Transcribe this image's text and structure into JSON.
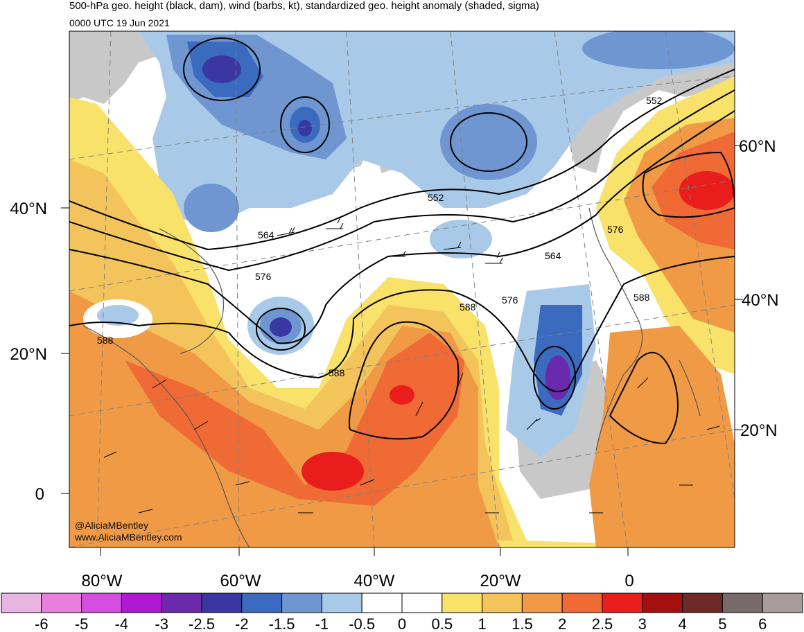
{
  "header": {
    "title": "500-hPa geo. height (black, dam), wind (barbs, kt), standardized geo. height anomaly (shaded, sigma)",
    "valid_time": "0000 UTC 19 Jun 2021"
  },
  "credits": {
    "twitter": "@AliciaMBentley",
    "website": "www.AliciaMBentley.com"
  },
  "lat_labels_left": [
    "40°N",
    "20°N",
    "0"
  ],
  "lat_labels_right": [
    "60°N",
    "40°N",
    "20°N"
  ],
  "lon_labels": [
    "80°W",
    "60°W",
    "40°W",
    "20°W",
    "0"
  ],
  "contour_labels": [
    "552",
    "552",
    "564",
    "564",
    "576",
    "576",
    "576",
    "588",
    "588",
    "588",
    "588"
  ],
  "colorbar": {
    "ticks": [
      "-6",
      "-5",
      "-4",
      "-3",
      "-2.5",
      "-2",
      "-1.5",
      "-1",
      "-0.5",
      "0",
      "0.5",
      "1",
      "1.5",
      "2",
      "2.5",
      "3",
      "4",
      "5",
      "6"
    ],
    "colors": [
      "#e8b4e0",
      "#e87fdc",
      "#d64ee0",
      "#b019d3",
      "#6a2aab",
      "#3a37a3",
      "#3a6bbf",
      "#6f96d1",
      "#a9c9e8",
      "#ffffff",
      "#ffffff",
      "#f8e26a",
      "#f4c45c",
      "#f09a45",
      "#f06a35",
      "#e81d1c",
      "#a50f0f",
      "#6e2a26",
      "#776a68",
      "#a89c9b"
    ]
  },
  "colors": {
    "land": "#c8c8c8",
    "ocean_neutral": "#ffffff",
    "contour": "#000000",
    "grid": "#808080"
  }
}
